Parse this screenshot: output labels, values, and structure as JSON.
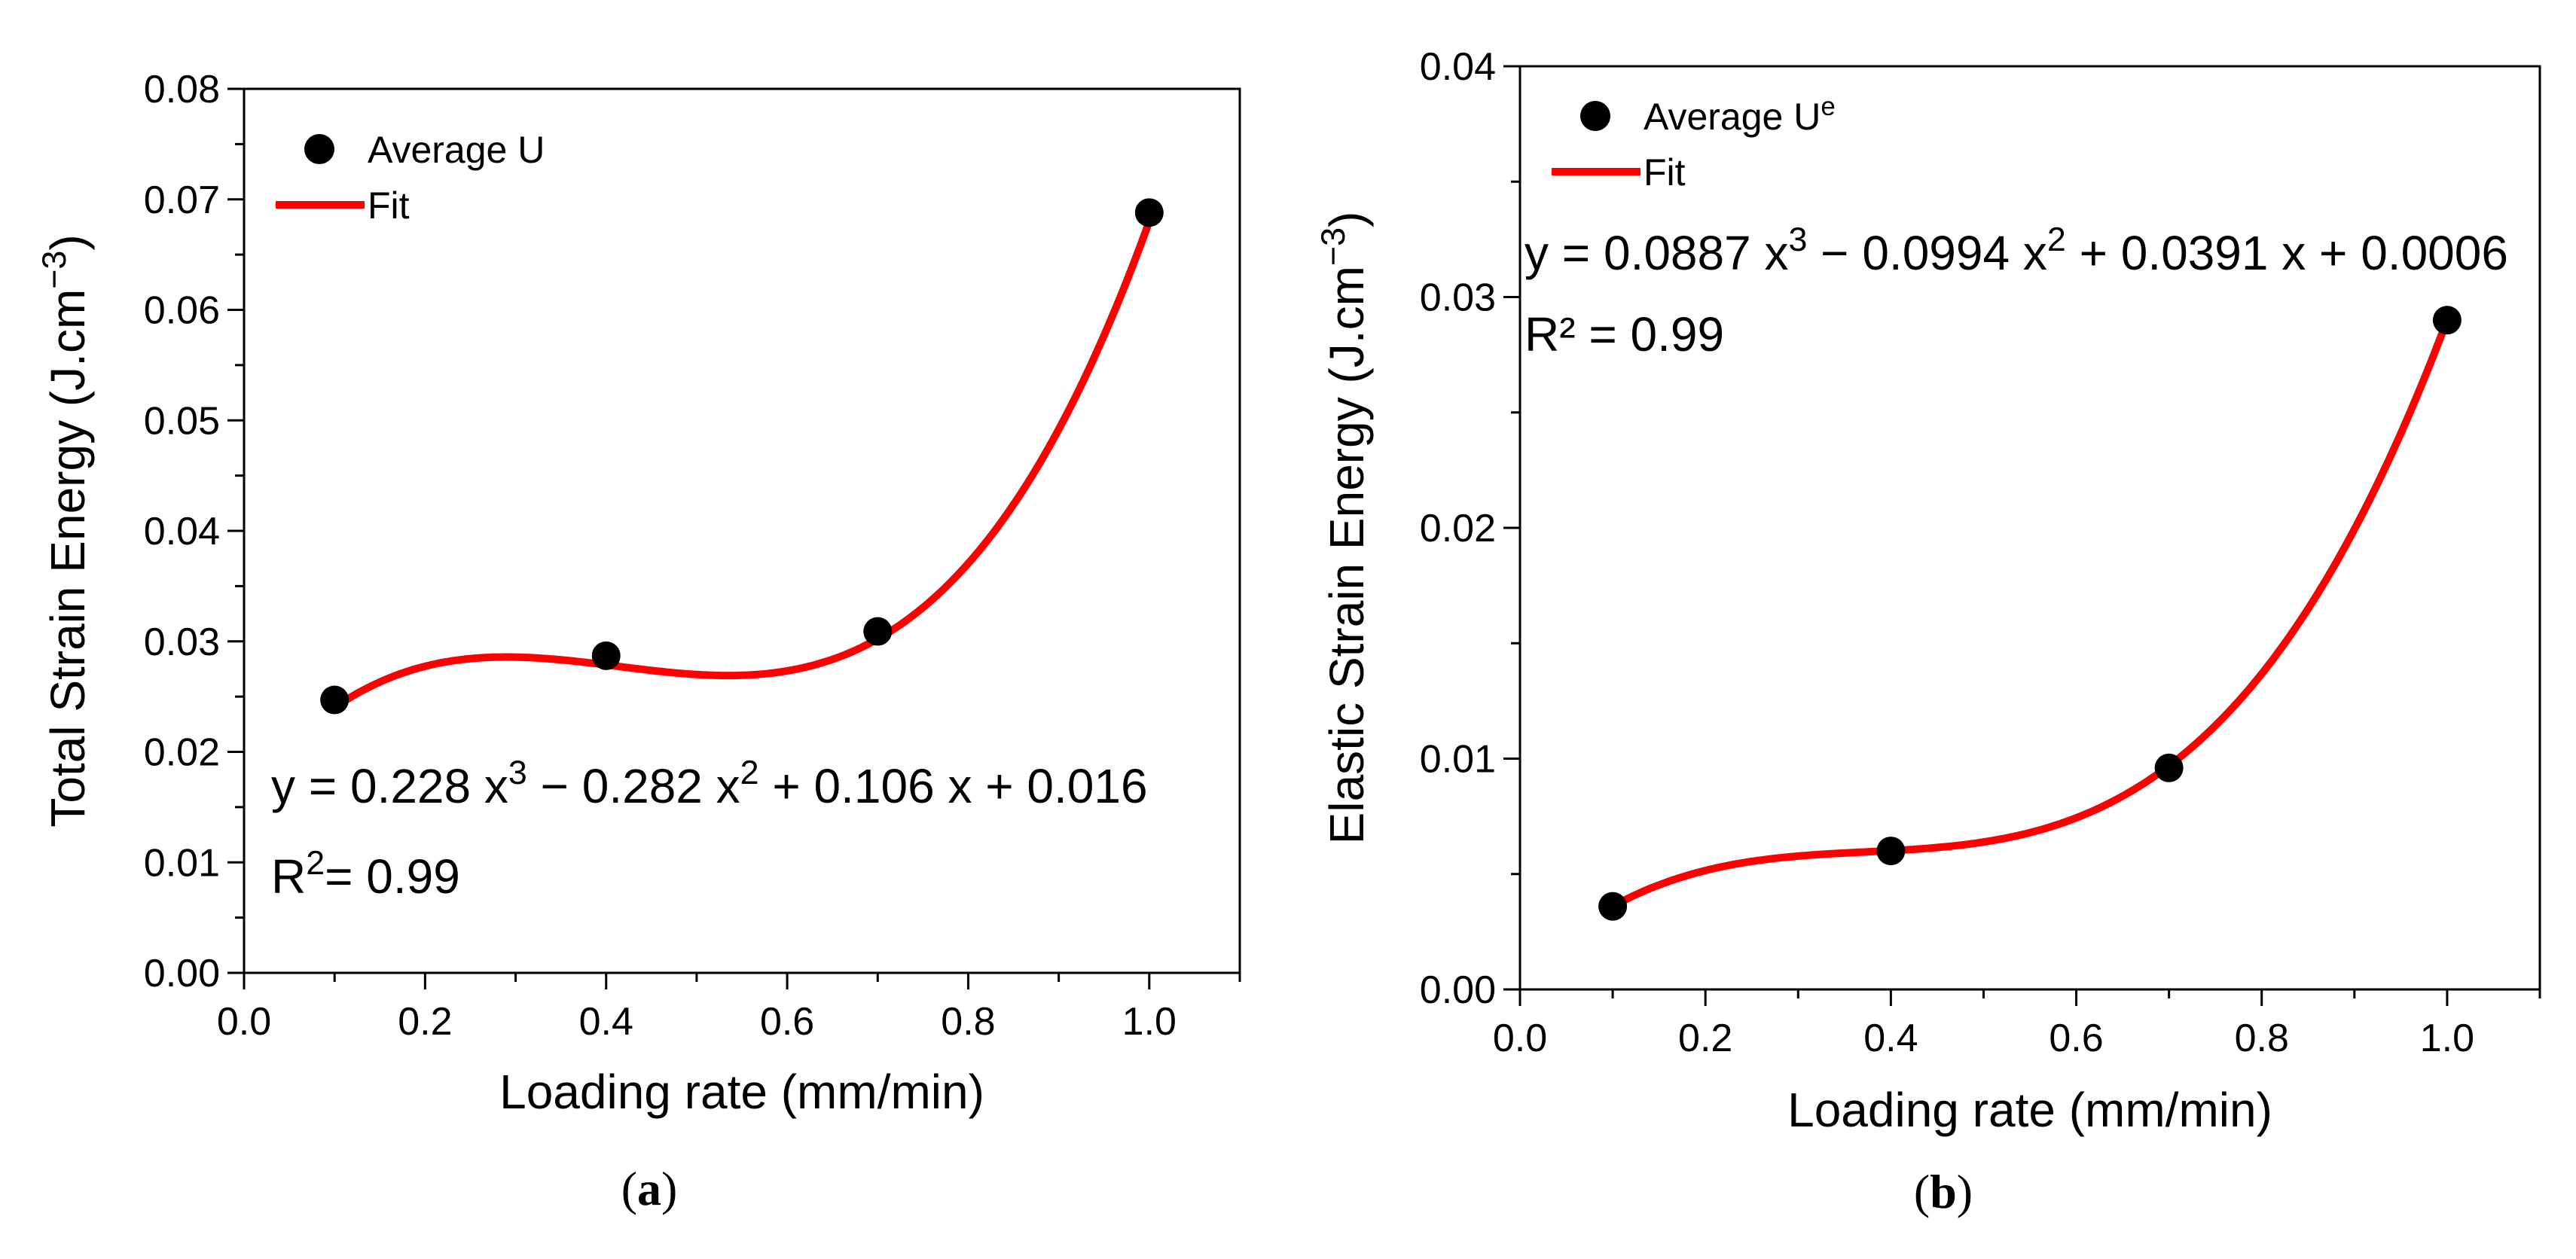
{
  "chart_data": [
    {
      "type": "scatter",
      "caption": "a",
      "xlabel": "Loading rate (mm/min)",
      "ylabel": "Total Strain Energy (J.cm",
      "ylabel_sup": "−3",
      "ylabel_end": ")",
      "xlim": [
        0,
        1.1
      ],
      "ylim": [
        0,
        0.08
      ],
      "xticks": [
        "0.0",
        "0.2",
        "0.4",
        "0.6",
        "0.8",
        "1.0"
      ],
      "yticks": [
        "0.00",
        "0.01",
        "0.02",
        "0.03",
        "0.04",
        "0.05",
        "0.06",
        "0.07",
        "0.08"
      ],
      "series": [
        {
          "name": "Average U",
          "kind": "scatter",
          "x": [
            0.1,
            0.4,
            0.7,
            1.0
          ],
          "y": [
            0.0247,
            0.0287,
            0.0309,
            0.0688
          ]
        },
        {
          "name": "Fit",
          "kind": "line",
          "coeffs": [
            0.228,
            -0.282,
            0.106,
            0.016
          ],
          "color": "#ff0000"
        }
      ],
      "equation": {
        "p1": "y = 0.228 x",
        "s1": "3",
        "p2": " − 0.282 x",
        "s2": "2",
        "p3": " + 0.106 x + 0.016"
      },
      "r2": {
        "p1": "R",
        "s1": "2",
        "p2": "= 0.99"
      }
    },
    {
      "type": "scatter",
      "caption": "b",
      "xlabel": "Loading rate (mm/min)",
      "ylabel": "Elastic Strain Energy (J.cm",
      "ylabel_sup": "−3",
      "ylabel_end": ")",
      "xlim": [
        0,
        1.1
      ],
      "ylim": [
        0,
        0.04
      ],
      "xticks": [
        "0.0",
        "0.2",
        "0.4",
        "0.6",
        "0.8",
        "1.0"
      ],
      "yticks": [
        "0.00",
        "0.01",
        "0.02",
        "0.03",
        "0.04"
      ],
      "series": [
        {
          "name": "Average U",
          "name_sup": "e",
          "kind": "scatter",
          "x": [
            0.1,
            0.4,
            0.7,
            1.0
          ],
          "y": [
            0.0036,
            0.006,
            0.0096,
            0.029
          ]
        },
        {
          "name": "Fit",
          "kind": "line",
          "coeffs": [
            0.0887,
            -0.0994,
            0.0391,
            0.0006
          ],
          "color": "#ff0000"
        }
      ],
      "equation": {
        "p1": "y = 0.0887 x",
        "s1": "3",
        "p2": "  − 0.0994 x",
        "s2": "2",
        "p3": " + 0.0391 x + 0.0006"
      },
      "r2": {
        "p1": "R² = 0.99",
        "s1": "",
        "p2": ""
      }
    }
  ]
}
